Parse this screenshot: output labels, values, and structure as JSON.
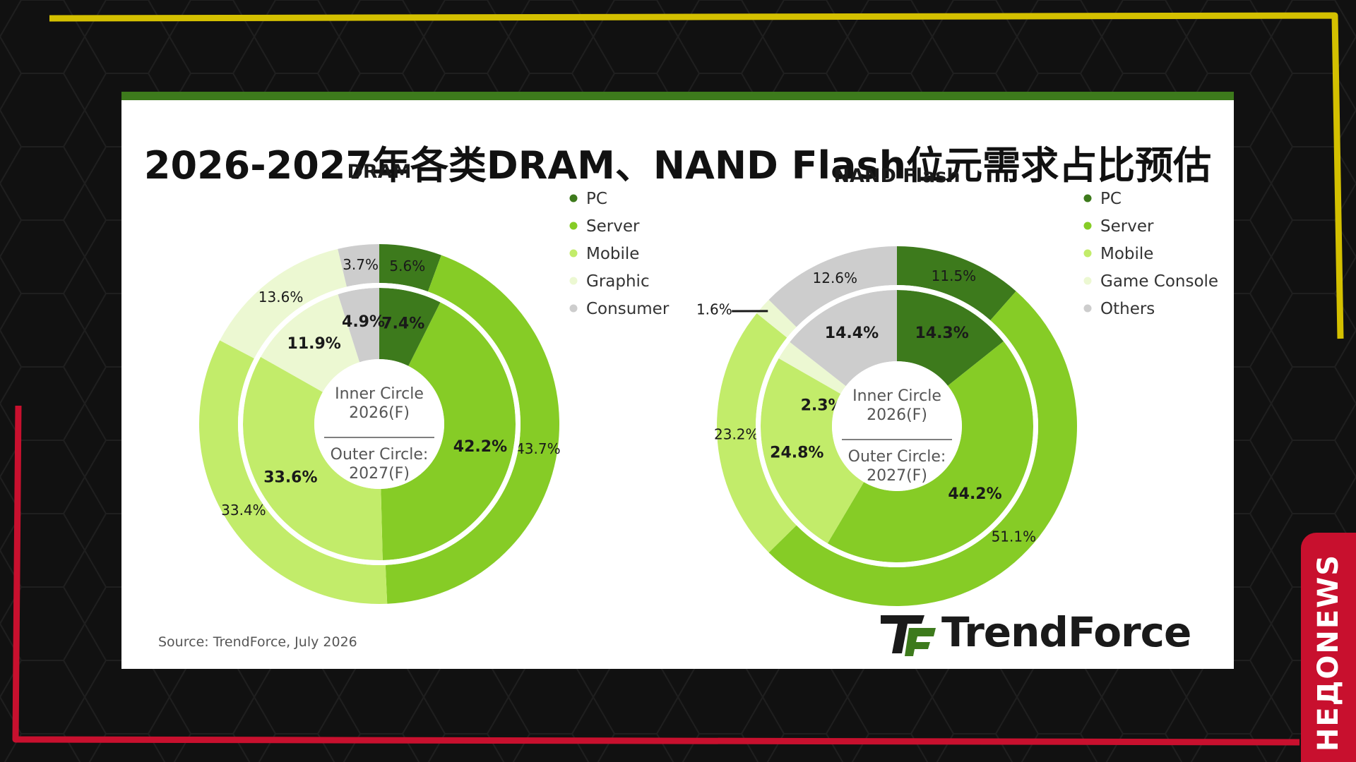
{
  "page": {
    "title": "2026-2027年各类DRAM、NAND Flash位元需求占比预估",
    "source": "Source: TrendForce, July 2026",
    "brand": "TrendForce",
    "badge": "НЕДОNEWS"
  },
  "colors": {
    "pc": "#3d7a1c",
    "server": "#86cc26",
    "mobile": "#c2ec6a",
    "graphic": "#ecf8d2",
    "consumer": "#cdcdcd",
    "card_border": "#3d7a1c",
    "frame_yellow": "#d4c000",
    "frame_red": "#c8102e"
  },
  "center_label": {
    "inner": [
      "Inner Circle",
      "2026(F)"
    ],
    "outer": [
      "Outer Circle:",
      "2027(F)"
    ]
  },
  "chart_data": [
    {
      "type": "pie",
      "subtype": "nested-donut",
      "title": "DRAM",
      "legend": [
        "PC",
        "Server",
        "Mobile",
        "Graphic",
        "Consumer"
      ],
      "legend_placement": "right",
      "series": [
        {
          "name": "Inner Circle 2026(F)",
          "values": [
            7.4,
            42.2,
            33.6,
            11.9,
            4.9
          ]
        },
        {
          "name": "Outer Circle: 2027(F)",
          "values": [
            5.6,
            43.7,
            33.4,
            13.6,
            3.7
          ]
        }
      ]
    },
    {
      "type": "pie",
      "subtype": "nested-donut",
      "title": "NAND Flash",
      "legend": [
        "PC",
        "Server",
        "Mobile",
        "Game Console",
        "Others"
      ],
      "legend_placement": "right",
      "series": [
        {
          "name": "Inner Circle 2026(F)",
          "values": [
            14.3,
            44.2,
            24.8,
            2.3,
            14.4
          ]
        },
        {
          "name": "Outer Circle: 2027(F)",
          "values": [
            11.5,
            51.1,
            23.2,
            1.6,
            12.6
          ]
        }
      ]
    }
  ]
}
